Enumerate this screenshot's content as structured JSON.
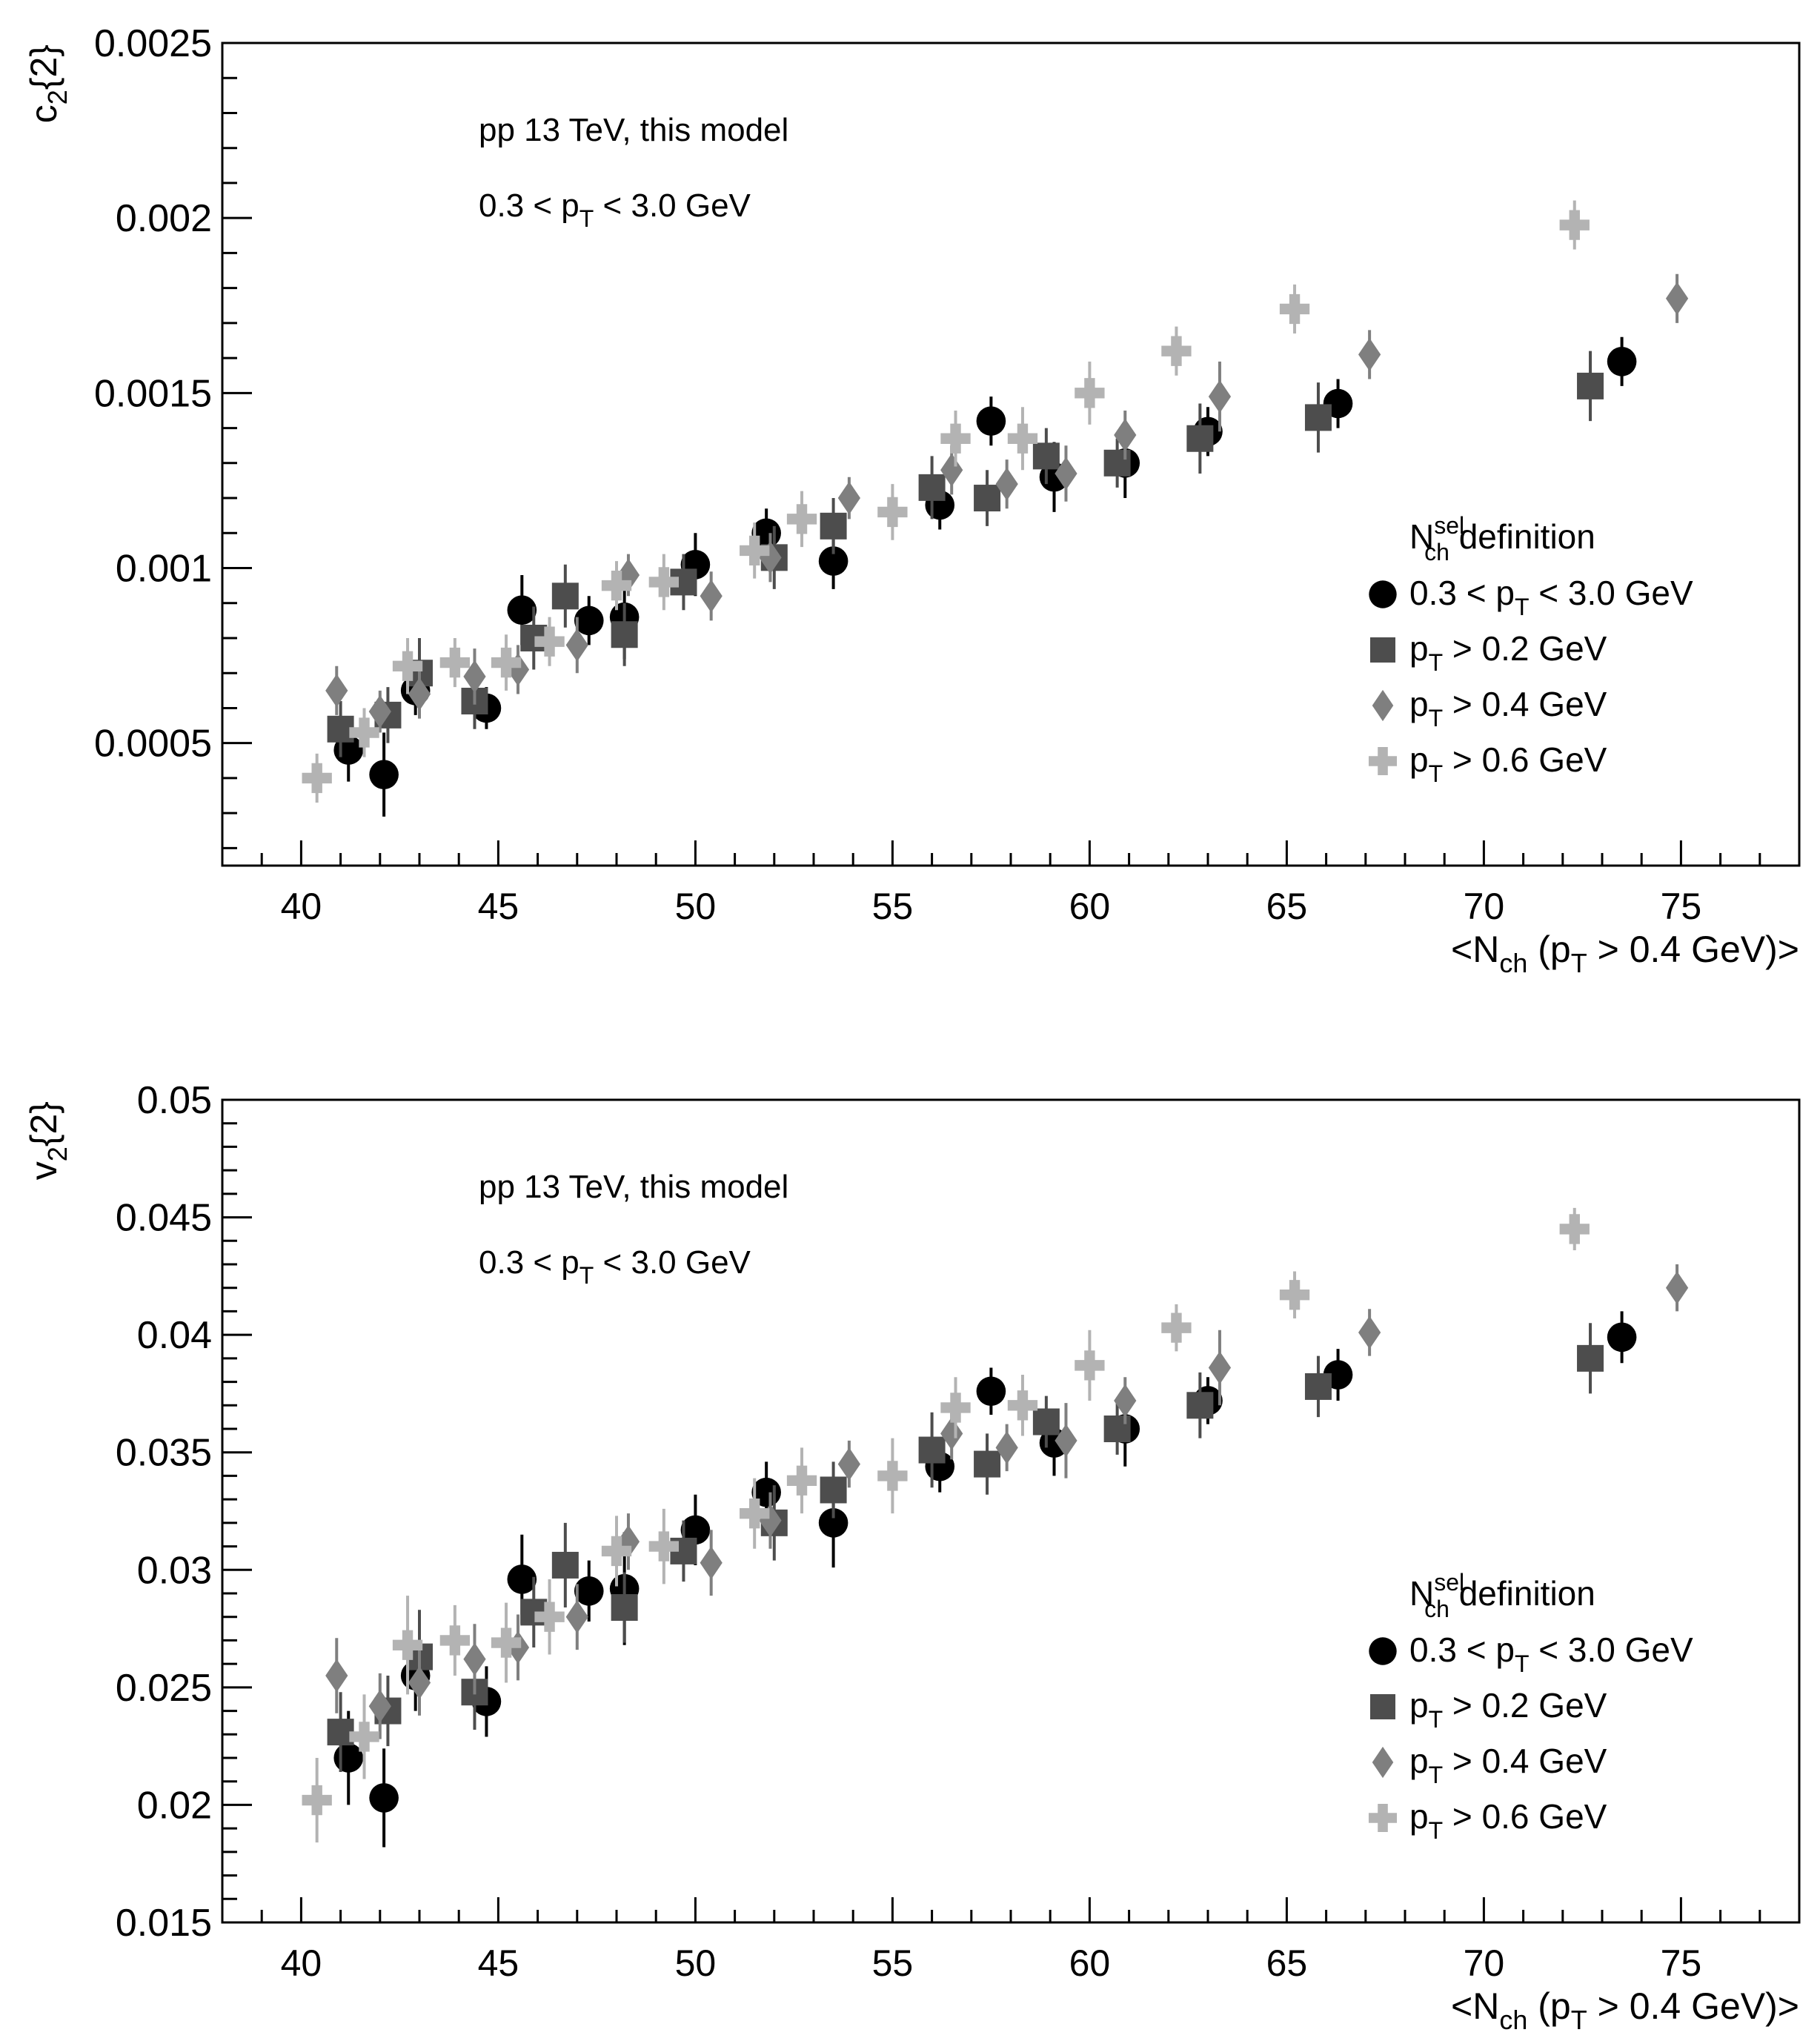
{
  "chart_data": [
    {
      "type": "scatter",
      "ylabel_main": "c",
      "ylabel_sub": "2",
      "ylabel_tail": "{2}",
      "xlabel_pre": "<N",
      "xlabel_sub1": "ch",
      "xlabel_mid": " (p",
      "xlabel_sub2": "T",
      "xlabel_post": " > 0.4 GeV)>",
      "xlim": [
        38,
        78
      ],
      "ylim": [
        0.00015,
        0.0025
      ],
      "xticks": [
        40,
        45,
        50,
        55,
        60,
        65,
        70,
        75
      ],
      "xtick_labels": [
        "40",
        "45",
        "50",
        "55",
        "60",
        "65",
        "70",
        "75"
      ],
      "yticks": [
        0.0005,
        0.001,
        0.0015,
        0.002,
        0.0025
      ],
      "ytick_labels": [
        "0.0005",
        "0.001",
        "0.0015",
        "0.002",
        "0.0025"
      ],
      "annotations": [
        {
          "text": "pp 13 TeV, this model"
        },
        {
          "pre": "0.3 < p",
          "sub": "T",
          "post": " < 3.0 GeV"
        }
      ],
      "legend_title": {
        "pre": "N",
        "sup": "sel",
        "sub": "ch",
        "post": " definition"
      },
      "legend_position": "right",
      "series": [
        {
          "name": "0.3 < pT < 3.0 GeV",
          "label_pre": "0.3 < p",
          "label_sub": "T",
          "label_post": " < 3.0 GeV",
          "marker": "circle",
          "color": "#000000",
          "x": [
            41.2,
            42.1,
            42.9,
            44.7,
            45.6,
            47.3,
            48.2,
            50.0,
            51.8,
            53.5,
            56.2,
            57.5,
            59.1,
            60.9,
            63.0,
            66.3,
            73.5
          ],
          "y": [
            0.00048,
            0.00041,
            0.00065,
            0.0006,
            0.00088,
            0.00085,
            0.00086,
            0.00101,
            0.0011,
            0.00102,
            0.00118,
            0.00142,
            0.00126,
            0.0013,
            0.00139,
            0.00147,
            0.00159
          ],
          "err": [
            9e-05,
            0.00012,
            7e-05,
            6e-05,
            0.0001,
            7e-05,
            0.00012,
            9e-05,
            7e-05,
            8e-05,
            7e-05,
            7e-05,
            0.0001,
            0.0001,
            7e-05,
            7e-05,
            7e-05
          ]
        },
        {
          "name": "pT > 0.2 GeV",
          "label_pre": "p",
          "label_sub": "T",
          "label_post": " > 0.2 GeV",
          "marker": "square",
          "color": "#4d4d4d",
          "x": [
            41.0,
            42.2,
            43.0,
            44.4,
            45.9,
            46.7,
            48.2,
            49.7,
            52.0,
            53.5,
            56.0,
            57.4,
            58.9,
            60.7,
            62.8,
            65.8,
            72.7
          ],
          "y": [
            0.00054,
            0.00058,
            0.0007,
            0.00062,
            0.0008,
            0.00092,
            0.00081,
            0.00096,
            0.00103,
            0.00112,
            0.00123,
            0.0012,
            0.00132,
            0.0013,
            0.00137,
            0.00143,
            0.00152
          ],
          "err": [
            8e-05,
            8e-05,
            0.0001,
            8e-05,
            9e-05,
            9e-05,
            9e-05,
            8e-05,
            9e-05,
            8e-05,
            9e-05,
            8e-05,
            8e-05,
            7e-05,
            0.0001,
            0.0001,
            0.0001
          ]
        },
        {
          "name": "pT > 0.4 GeV",
          "label_pre": "p",
          "label_sub": "T",
          "label_post": " > 0.4 GeV",
          "marker": "diamond",
          "color": "#7f7f7f",
          "x": [
            40.9,
            42.0,
            43.0,
            44.4,
            45.5,
            47.0,
            48.3,
            50.4,
            51.9,
            53.9,
            56.5,
            57.9,
            59.4,
            60.9,
            63.3,
            67.1,
            74.9
          ],
          "y": [
            0.00065,
            0.00059,
            0.00064,
            0.00069,
            0.00071,
            0.00078,
            0.00098,
            0.00092,
            0.00103,
            0.0012,
            0.00128,
            0.00124,
            0.00127,
            0.00138,
            0.00149,
            0.00161,
            0.00177
          ],
          "err": [
            7e-05,
            6e-05,
            7e-05,
            8e-05,
            7e-05,
            8e-05,
            6e-05,
            7e-05,
            7e-05,
            6e-05,
            7e-05,
            7e-05,
            8e-05,
            7e-05,
            0.0001,
            7e-05,
            7e-05
          ]
        },
        {
          "name": "pT > 0.6 GeV",
          "label_pre": "p",
          "label_sub": "T",
          "label_post": " > 0.6 GeV",
          "marker": "cross",
          "color": "#b3b3b3",
          "x": [
            40.4,
            41.6,
            42.7,
            43.9,
            45.2,
            46.3,
            48.0,
            49.2,
            51.5,
            52.7,
            55.0,
            56.6,
            58.3,
            60.0,
            62.2,
            65.2,
            72.3
          ],
          "y": [
            0.0004,
            0.00053,
            0.00072,
            0.00073,
            0.00073,
            0.00079,
            0.00095,
            0.00096,
            0.00105,
            0.00114,
            0.00116,
            0.00137,
            0.00137,
            0.0015,
            0.00162,
            0.00174,
            0.00198
          ],
          "err": [
            7e-05,
            7e-05,
            8e-05,
            7e-05,
            8e-05,
            7e-05,
            7e-05,
            8e-05,
            8e-05,
            8e-05,
            8e-05,
            8e-05,
            9e-05,
            9e-05,
            7e-05,
            7e-05,
            7e-05
          ]
        }
      ]
    },
    {
      "type": "scatter",
      "ylabel_main": "v",
      "ylabel_sub": "2",
      "ylabel_tail": "{2}",
      "xlabel_pre": "<N",
      "xlabel_sub1": "ch",
      "xlabel_mid": " (p",
      "xlabel_sub2": "T",
      "xlabel_post": " > 0.4 GeV)>",
      "xlim": [
        38,
        78
      ],
      "ylim": [
        0.015,
        0.05
      ],
      "xticks": [
        40,
        45,
        50,
        55,
        60,
        65,
        70,
        75
      ],
      "xtick_labels": [
        "40",
        "45",
        "50",
        "55",
        "60",
        "65",
        "70",
        "75"
      ],
      "yticks": [
        0.015,
        0.02,
        0.025,
        0.03,
        0.035,
        0.04,
        0.045,
        0.05
      ],
      "ytick_labels": [
        "0.015",
        "0.02",
        "0.025",
        "0.03",
        "0.035",
        "0.04",
        "0.045",
        "0.05"
      ],
      "annotations": [
        {
          "text": "pp 13 TeV, this model"
        },
        {
          "pre": "0.3 < p",
          "sub": "T",
          "post": " < 3.0 GeV"
        }
      ],
      "legend_title": {
        "pre": "N",
        "sup": "sel",
        "sub": "ch",
        "post": " definition"
      },
      "legend_position": "right",
      "series": [
        {
          "name": "0.3 < pT < 3.0 GeV",
          "label_pre": "0.3 < p",
          "label_sub": "T",
          "label_post": " < 3.0 GeV",
          "marker": "circle",
          "color": "#000000",
          "x": [
            41.2,
            42.1,
            42.9,
            44.7,
            45.6,
            47.3,
            48.2,
            50.0,
            51.8,
            53.5,
            56.2,
            57.5,
            59.1,
            60.9,
            63.0,
            66.3,
            73.5
          ],
          "y": [
            0.022,
            0.0203,
            0.0255,
            0.0244,
            0.0296,
            0.0291,
            0.0292,
            0.0317,
            0.0333,
            0.032,
            0.0344,
            0.0376,
            0.0354,
            0.036,
            0.0372,
            0.0383,
            0.0399
          ],
          "err": [
            0.002,
            0.0021,
            0.0015,
            0.0015,
            0.0019,
            0.0013,
            0.0024,
            0.0015,
            0.0013,
            0.0019,
            0.0011,
            0.001,
            0.0014,
            0.0016,
            0.001,
            0.0011,
            0.0011
          ]
        },
        {
          "name": "pT > 0.2 GeV",
          "label_pre": "p",
          "label_sub": "T",
          "label_post": " > 0.2 GeV",
          "marker": "square",
          "color": "#4d4d4d",
          "x": [
            41.0,
            42.2,
            43.0,
            44.4,
            45.9,
            46.7,
            48.2,
            49.7,
            52.0,
            53.5,
            56.0,
            57.4,
            58.9,
            60.7,
            62.8,
            65.8,
            72.7
          ],
          "y": [
            0.0231,
            0.024,
            0.0263,
            0.0248,
            0.0282,
            0.0302,
            0.0284,
            0.0308,
            0.032,
            0.0334,
            0.0351,
            0.0345,
            0.0363,
            0.036,
            0.037,
            0.0378,
            0.039
          ],
          "err": [
            0.0017,
            0.0015,
            0.002,
            0.0016,
            0.0015,
            0.0018,
            0.0015,
            0.0013,
            0.0016,
            0.0012,
            0.0016,
            0.0013,
            0.0011,
            0.0011,
            0.0014,
            0.0013,
            0.0015
          ]
        },
        {
          "name": "pT > 0.4 GeV",
          "label_pre": "p",
          "label_sub": "T",
          "label_post": " > 0.4 GeV",
          "marker": "diamond",
          "color": "#7f7f7f",
          "x": [
            40.9,
            42.0,
            43.0,
            44.4,
            45.5,
            47.0,
            48.3,
            50.4,
            51.9,
            53.9,
            56.5,
            57.9,
            59.4,
            60.9,
            63.3,
            67.1,
            74.9
          ],
          "y": [
            0.0255,
            0.0242,
            0.0252,
            0.0262,
            0.0267,
            0.028,
            0.0312,
            0.0303,
            0.0321,
            0.0345,
            0.0358,
            0.0352,
            0.0355,
            0.0372,
            0.0386,
            0.0401,
            0.042
          ],
          "err": [
            0.0016,
            0.0014,
            0.0014,
            0.0015,
            0.0014,
            0.0014,
            0.0012,
            0.0014,
            0.0012,
            0.001,
            0.0011,
            0.001,
            0.0016,
            0.001,
            0.0016,
            0.001,
            0.001
          ]
        },
        {
          "name": "pT > 0.6 GeV",
          "label_pre": "p",
          "label_sub": "T",
          "label_post": " > 0.6 GeV",
          "marker": "cross",
          "color": "#b3b3b3",
          "x": [
            40.4,
            41.6,
            42.7,
            43.9,
            45.2,
            46.3,
            48.0,
            49.2,
            51.5,
            52.7,
            55.0,
            56.6,
            58.3,
            60.0,
            62.2,
            65.2,
            72.3
          ],
          "y": [
            0.0202,
            0.0229,
            0.0268,
            0.027,
            0.0269,
            0.028,
            0.0308,
            0.031,
            0.0324,
            0.0338,
            0.034,
            0.0369,
            0.037,
            0.0387,
            0.0403,
            0.0417,
            0.0445
          ],
          "err": [
            0.0018,
            0.0018,
            0.0021,
            0.0015,
            0.0017,
            0.0016,
            0.0015,
            0.0016,
            0.0015,
            0.0014,
            0.0016,
            0.0013,
            0.0013,
            0.0015,
            0.001,
            0.001,
            0.0009
          ]
        }
      ]
    }
  ]
}
